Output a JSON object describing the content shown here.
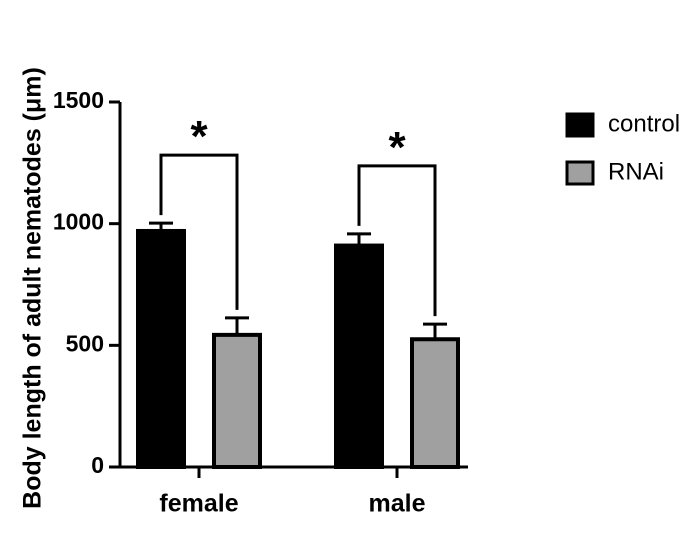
{
  "chart_data": {
    "type": "bar",
    "title": "",
    "xlabel": "",
    "ylabel": "Body length of adult nematodes (μm)",
    "categories": [
      "female",
      "male"
    ],
    "series": [
      {
        "name": "control",
        "values": [
          970,
          910
        ],
        "errors": [
          32,
          48
        ],
        "color": "#000000"
      },
      {
        "name": "RNAi",
        "values": [
          543,
          525
        ],
        "errors": [
          70,
          62
        ],
        "color": "#a0a0a0"
      }
    ],
    "ylim": [
      0,
      1500
    ],
    "yticks": [
      0,
      500,
      1000,
      1500
    ],
    "yticks_labels": [
      "0",
      "500",
      "1000",
      "1500"
    ],
    "grid": false,
    "legend": {
      "position": "top-right",
      "entries": [
        "control",
        "RNAi"
      ]
    },
    "annotations": [
      {
        "category": "female",
        "text": "*"
      },
      {
        "category": "male",
        "text": "*"
      }
    ]
  }
}
